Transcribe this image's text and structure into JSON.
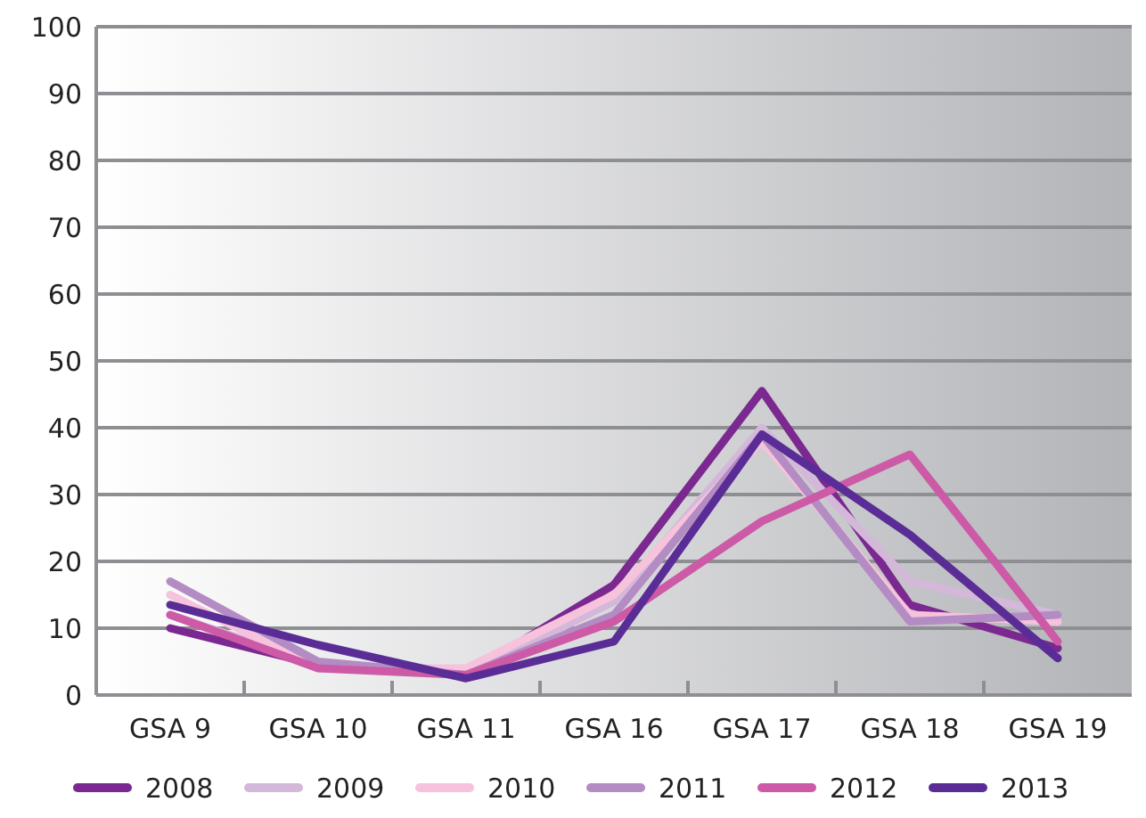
{
  "chart_data": {
    "type": "line",
    "categories": [
      "GSA 9",
      "GSA 10",
      "GSA 11",
      "GSA 16",
      "GSA 17",
      "GSA 18",
      "GSA 19"
    ],
    "series": [
      {
        "name": "2008",
        "color": "#7b2890",
        "values": [
          10,
          4.5,
          3,
          16.5,
          45.5,
          13.5,
          7
        ]
      },
      {
        "name": "2009",
        "color": "#d4b8da",
        "values": [
          12,
          4.5,
          3,
          14,
          40,
          17,
          12
        ]
      },
      {
        "name": "2010",
        "color": "#f6c2dc",
        "values": [
          15,
          4,
          4,
          15,
          38,
          12,
          11
        ]
      },
      {
        "name": "2011",
        "color": "#b48cc4",
        "values": [
          17,
          5,
          3,
          12,
          39,
          11,
          12
        ]
      },
      {
        "name": "2012",
        "color": "#cc5aa6",
        "values": [
          12,
          4,
          3,
          11,
          26,
          36,
          8
        ]
      },
      {
        "name": "2013",
        "color": "#5a2d96",
        "values": [
          13.5,
          7.5,
          2.5,
          8,
          39,
          24,
          5.5
        ]
      }
    ],
    "ylim": [
      0,
      100
    ],
    "yticks": [
      0,
      10,
      20,
      30,
      40,
      50,
      60,
      70,
      80,
      90,
      100
    ],
    "grid": "y",
    "legend": "bottom",
    "marker": "none",
    "line_style": "solid"
  }
}
